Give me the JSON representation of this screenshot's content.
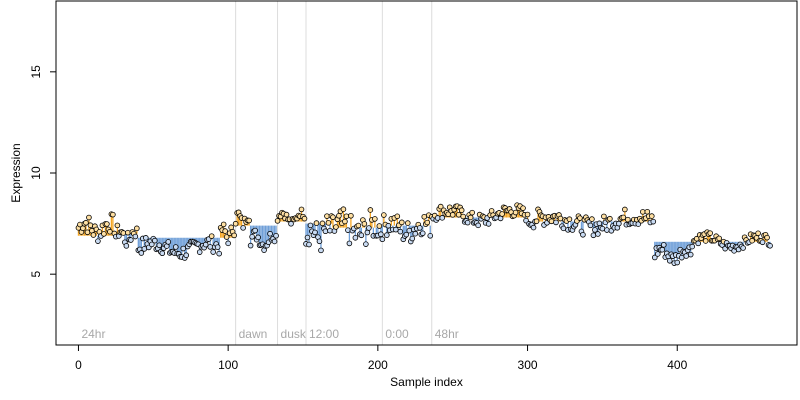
{
  "chart_data": {
    "type": "scatter",
    "xlabel": "Sample index",
    "ylabel": "Expression",
    "xlim": [
      -15,
      480
    ],
    "ylim": [
      1.5,
      18.5
    ],
    "x_ticks": [
      0,
      100,
      200,
      300,
      400
    ],
    "y_ticks": [
      5,
      10,
      15
    ],
    "grid": false,
    "colors": {
      "up": "#f5a623",
      "down": "#6f9fd8",
      "point_edge": "#000000"
    },
    "markers": [
      {
        "x": 0,
        "label": "24hr"
      },
      {
        "x": 105,
        "label": "dawn"
      },
      {
        "x": 133,
        "label": "dusk"
      },
      {
        "x": 152,
        "label": "12:00"
      },
      {
        "x": 203,
        "label": "0:00"
      },
      {
        "x": 236,
        "label": "48hr"
      }
    ],
    "segments": [
      {
        "start": 0,
        "end": 25,
        "baseline": 6.9,
        "mean": 7.3,
        "amp": 0.5,
        "up_color": true
      },
      {
        "start": 25,
        "end": 40,
        "baseline": 7.0,
        "mean": 6.9,
        "amp": 0.4,
        "up_color": false
      },
      {
        "start": 40,
        "end": 95,
        "baseline": 6.8,
        "mean": 6.3,
        "amp": 0.4,
        "up_color": false
      },
      {
        "start": 95,
        "end": 105,
        "baseline": 6.8,
        "mean": 7.0,
        "amp": 0.3,
        "up_color": true
      },
      {
        "start": 105,
        "end": 115,
        "baseline": 7.4,
        "mean": 7.7,
        "amp": 0.3,
        "up_color": true
      },
      {
        "start": 115,
        "end": 133,
        "baseline": 7.4,
        "mean": 6.7,
        "amp": 0.3,
        "up_color": false
      },
      {
        "start": 133,
        "end": 152,
        "baseline": 7.6,
        "mean": 7.8,
        "amp": 0.2,
        "up_color": true
      },
      {
        "start": 152,
        "end": 170,
        "baseline": 7.5,
        "mean": 7.0,
        "amp": 0.8,
        "up_color": false
      },
      {
        "start": 170,
        "end": 203,
        "baseline": 7.3,
        "mean": 7.2,
        "amp": 0.8,
        "up_color": false
      },
      {
        "start": 203,
        "end": 236,
        "baseline": 7.4,
        "mean": 7.3,
        "amp": 0.6,
        "up_color": true
      },
      {
        "start": 236,
        "end": 300,
        "baseline": 7.8,
        "mean": 7.9,
        "amp": 0.35,
        "up_color": true
      },
      {
        "start": 300,
        "end": 385,
        "baseline": 7.6,
        "mean": 7.6,
        "amp": 0.45,
        "up_color": true
      },
      {
        "start": 385,
        "end": 410,
        "baseline": 6.6,
        "mean": 6.0,
        "amp": 0.35,
        "up_color": false
      },
      {
        "start": 410,
        "end": 463,
        "baseline": 6.6,
        "mean": 6.6,
        "amp": 0.25,
        "up_color": false
      }
    ]
  }
}
